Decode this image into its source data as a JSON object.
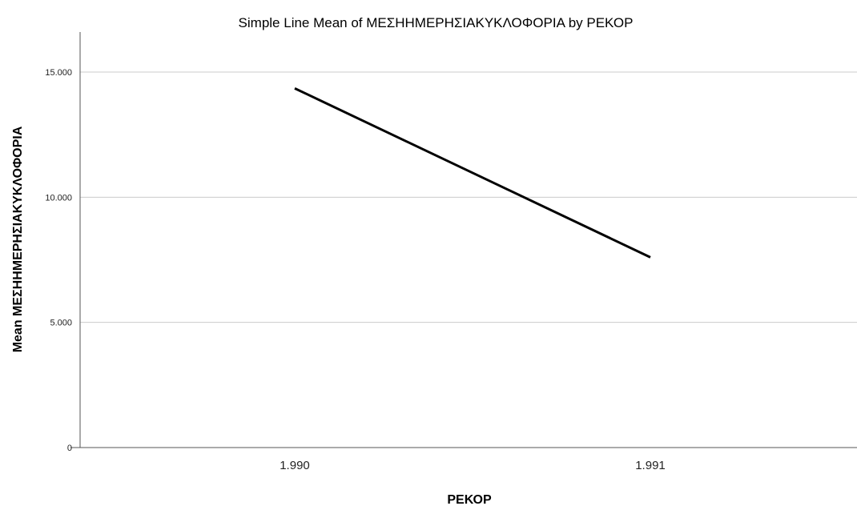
{
  "chart_data": {
    "type": "line",
    "title": "Simple Line Mean of ΜΕΣΗΗΜΕΡΗΣΙΑΚΥΚΛΟΦΟΡΙΑ by ΡΕΚΟΡ",
    "xlabel": "ΡΕΚΟΡ",
    "ylabel": "Mean ΜΕΣΗΗΜΕΡΗΣΙΑΚΥΚΛΟΦΟΡΙΑ",
    "categories": [
      "1.990",
      "1.991"
    ],
    "series": [
      {
        "values": [
          14350,
          7600
        ],
        "color": "#000000"
      }
    ],
    "y_ticks": [
      0,
      5000,
      10000,
      15000
    ],
    "y_tick_labels": [
      "0",
      "5.000",
      "10.000",
      "15.000"
    ],
    "ylim": [
      0,
      16600
    ],
    "grid": true
  }
}
